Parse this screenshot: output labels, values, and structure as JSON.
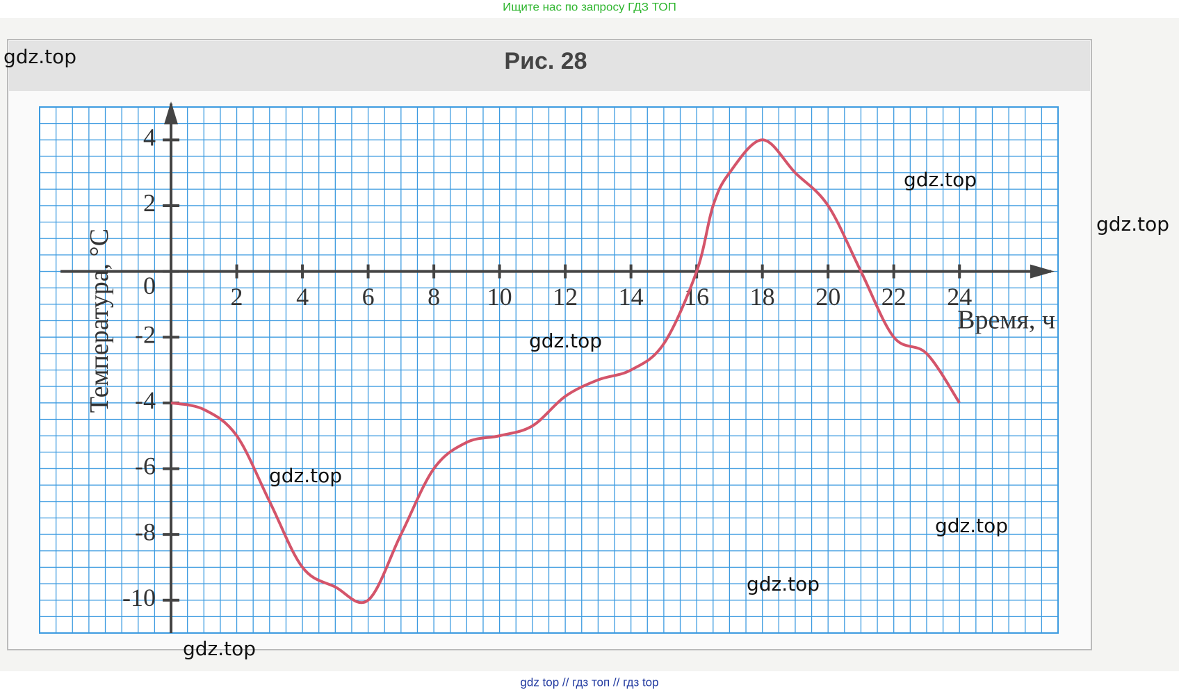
{
  "header": "Ищите нас по запросу ГДЗ ТОП",
  "footer": "gdz top  //  гдз топ  //  гдз top",
  "watermarks": [
    "gdz.top",
    "gdz.top",
    "gdz.top",
    "gdz.top",
    "gdz.top",
    "gdz.top",
    "gdz.top",
    "gdz.top"
  ],
  "chart_data": {
    "type": "line",
    "title": "Рис. 28",
    "x_label": "Время, ч",
    "y_label": "Температура, °C",
    "x": [
      0,
      1,
      2,
      3,
      4,
      5,
      6,
      7,
      8,
      9,
      10,
      11,
      12,
      13,
      14,
      15,
      16,
      16.5,
      17,
      18,
      19,
      20,
      21,
      22,
      23,
      24
    ],
    "series": [
      {
        "name": "Температура",
        "color": "#d4546a",
        "values": [
          -4,
          -4.2,
          -5,
          -7,
          -9,
          -9.6,
          -10,
          -8,
          -6,
          -5.2,
          -5,
          -4.7,
          -3.8,
          -3.3,
          -3,
          -2.2,
          0,
          2,
          3,
          4,
          3,
          2,
          0,
          -2,
          -2.5,
          -4
        ]
      }
    ],
    "xlim": [
      -4,
      27
    ],
    "ylim": [
      -11,
      5
    ],
    "xticks": [
      2,
      4,
      6,
      8,
      10,
      12,
      14,
      16,
      18,
      20,
      22,
      24
    ],
    "yticks": [
      -10,
      -8,
      -6,
      -4,
      -2,
      0,
      2,
      4
    ],
    "grid": true,
    "grid_color": "#3d9be0"
  }
}
